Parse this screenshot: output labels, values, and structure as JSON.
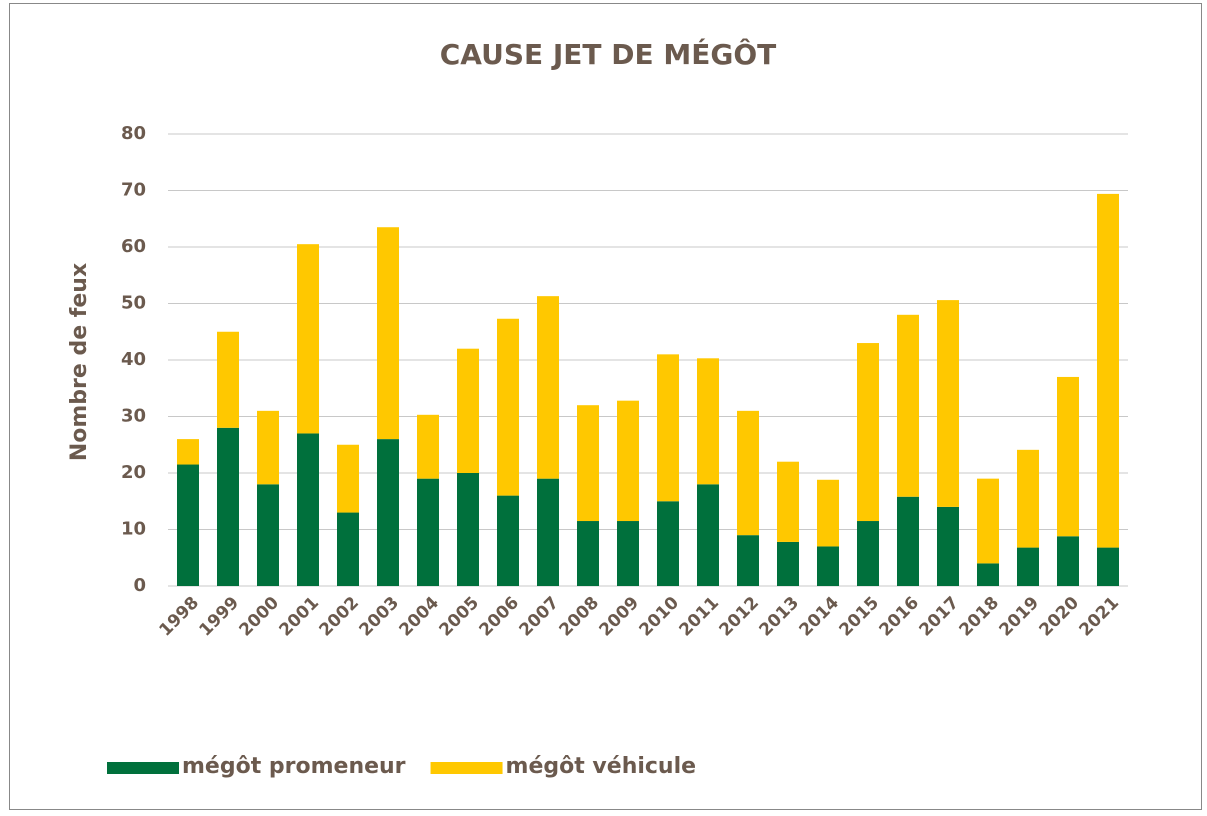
{
  "chart_data": {
    "type": "stacked_bar",
    "title": "CAUSE JET DE MÉGÔT",
    "y_label": "Nombre de feux",
    "categories": [
      "1998",
      "1999",
      "2000",
      "2001",
      "2002",
      "2003",
      "2004",
      "2005",
      "2006",
      "2007",
      "2008",
      "2009",
      "2010",
      "2011",
      "2012",
      "2013",
      "2014",
      "2015",
      "2016",
      "2017",
      "2018",
      "2019",
      "2020",
      "2021"
    ],
    "series": [
      {
        "name": "mégôt promeneur",
        "color": "#00703c",
        "values": [
          21.5,
          28,
          18,
          27,
          13,
          26,
          19,
          20,
          16,
          19,
          11.5,
          11.5,
          15,
          18,
          9,
          7.8,
          7,
          11.5,
          15.8,
          14,
          4,
          6.8,
          8.8,
          6.8
        ]
      },
      {
        "name": "mégôt véhicule",
        "color": "#ffc800",
        "values": [
          4.5,
          17,
          13,
          33.5,
          12,
          37.5,
          11.3,
          22,
          31.3,
          32.3,
          20.5,
          21.3,
          26,
          22.3,
          22,
          14.2,
          11.8,
          31.5,
          32.2,
          36.6,
          15,
          17.3,
          28.2,
          62.6
        ]
      }
    ],
    "ylim": [
      0,
      80
    ],
    "yticks": [
      0,
      10,
      20,
      30,
      40,
      50,
      60,
      70,
      80
    ],
    "grid": true,
    "legend": "bottom"
  }
}
